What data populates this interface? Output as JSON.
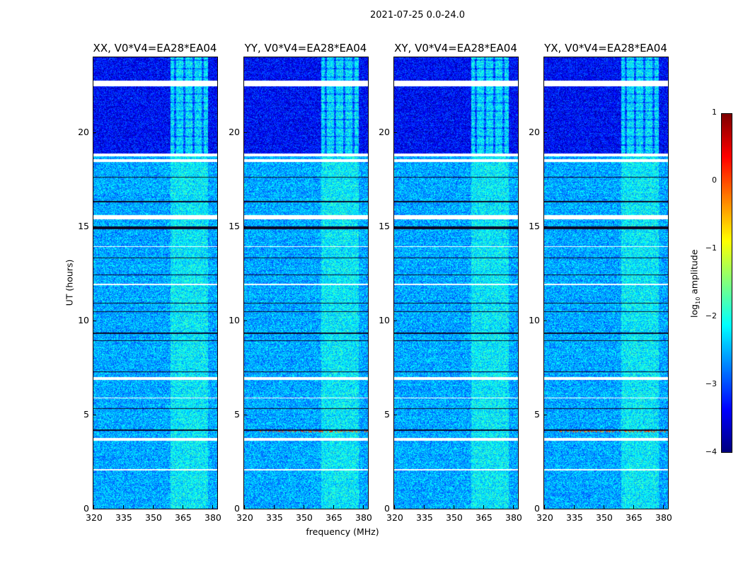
{
  "chart_data": {
    "type": "heatmap",
    "title": "2021-07-25 0.0-24.0",
    "panels": [
      {
        "title": "XX, V0*V4=EA28*EA04",
        "rfi_line_hours": []
      },
      {
        "title": "YY, V0*V4=EA28*EA04",
        "rfi_line_hours": [
          4.1
        ]
      },
      {
        "title": "XY, V0*V4=EA28*EA04",
        "rfi_line_hours": []
      },
      {
        "title": "YX, V0*V4=EA28*EA04",
        "rfi_line_hours": [
          4.1
        ]
      }
    ],
    "xlabel": "frequency (MHz)",
    "ylabel": "UT (hours)",
    "xlim": [
      320,
      382.5
    ],
    "ylim": [
      0,
      24
    ],
    "xticks": [
      320,
      335,
      350,
      365,
      380
    ],
    "yticks": [
      0,
      5,
      10,
      15,
      20
    ],
    "bright_band_mhz": [
      359,
      378
    ],
    "flagged_hours": [
      [
        22.45,
        22.75
      ],
      [
        18.75,
        18.9
      ],
      [
        18.45,
        18.6
      ],
      [
        15.4,
        15.6
      ],
      [
        6.85,
        7.0
      ],
      [
        5.85,
        5.9
      ],
      [
        3.6,
        3.75
      ],
      [
        13.9,
        13.95
      ],
      [
        11.9,
        11.95
      ],
      [
        2.05,
        2.1
      ]
    ],
    "dark_gap_hours": [
      [
        14.85,
        15.0
      ],
      [
        17.6,
        17.65
      ],
      [
        16.3,
        16.35
      ],
      [
        10.45,
        10.5
      ],
      [
        9.3,
        9.35
      ],
      [
        8.9,
        8.95
      ],
      [
        7.25,
        7.3
      ],
      [
        5.3,
        5.35
      ],
      [
        4.15,
        4.2
      ],
      [
        13.3,
        13.35
      ],
      [
        10.9,
        10.95
      ],
      [
        12.4,
        12.45
      ]
    ],
    "colorbar": {
      "label": "log10 amplitude",
      "label_main": "log",
      "label_sub": "10",
      "label_rest": " amplitude",
      "range": [
        -4,
        1
      ],
      "ticks": [
        -4,
        -3,
        -2,
        -1,
        0,
        1
      ],
      "tick_labels": [
        "−4",
        "−3",
        "−2",
        "−1",
        "0",
        "1"
      ],
      "colormap": "jet"
    }
  }
}
